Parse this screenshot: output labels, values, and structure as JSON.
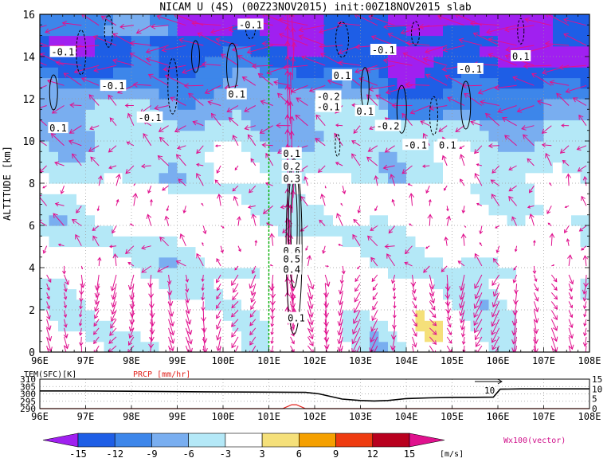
{
  "title": "NICAM U (4S) (00Z23NOV2015) init:00Z18NOV2015 slab",
  "main_panel": {
    "ylabel": "ALTITUDE [km]",
    "yticks": [
      0,
      2,
      4,
      6,
      8,
      10,
      12,
      14,
      16
    ],
    "ylim": [
      0,
      16
    ],
    "xticks": [
      "96E",
      "97E",
      "98E",
      "99E",
      "100E",
      "101E",
      "102E",
      "103E",
      "104E",
      "105E",
      "106E",
      "107E",
      "108E"
    ],
    "xlim": [
      96,
      108
    ],
    "marker_lon": 101,
    "contour_labels": [
      {
        "text": "-0.1",
        "lon": 100.6,
        "alt": 15.5
      },
      {
        "text": "-0.1",
        "lon": 96.5,
        "alt": 14.2
      },
      {
        "text": "0.1",
        "lon": 96.4,
        "alt": 10.6
      },
      {
        "text": "-0.1",
        "lon": 97.6,
        "alt": 12.6
      },
      {
        "text": "-0.1",
        "lon": 98.4,
        "alt": 11.1
      },
      {
        "text": "0.1",
        "lon": 100.3,
        "alt": 12.2
      },
      {
        "text": "0.1",
        "lon": 101.5,
        "alt": 9.4
      },
      {
        "text": "0.2",
        "lon": 101.5,
        "alt": 8.8
      },
      {
        "text": "0.3",
        "lon": 101.5,
        "alt": 8.2
      },
      {
        "text": "0.6",
        "lon": 101.5,
        "alt": 4.8
      },
      {
        "text": "0.5",
        "lon": 101.5,
        "alt": 4.4
      },
      {
        "text": "0.4",
        "lon": 101.5,
        "alt": 3.9
      },
      {
        "text": "0.1",
        "lon": 101.6,
        "alt": 1.6
      },
      {
        "text": "0.1",
        "lon": 102.6,
        "alt": 13.1
      },
      {
        "text": "-0.2",
        "lon": 102.3,
        "alt": 12.1
      },
      {
        "text": "-0.1",
        "lon": 102.3,
        "alt": 11.6
      },
      {
        "text": "-0.1",
        "lon": 103.5,
        "alt": 14.3
      },
      {
        "text": "0.1",
        "lon": 103.1,
        "alt": 11.4
      },
      {
        "text": "-0.2",
        "lon": 103.6,
        "alt": 10.7
      },
      {
        "text": "-0.1",
        "lon": 104.2,
        "alt": 9.8
      },
      {
        "text": "0.1",
        "lon": 104.9,
        "alt": 9.8
      },
      {
        "text": "-0.1",
        "lon": 105.4,
        "alt": 13.4
      },
      {
        "text": "0.1",
        "lon": 106.5,
        "alt": 14.0
      }
    ]
  },
  "lower_panel": {
    "left_label": "TEM(SFC)[K]",
    "right_label": "PRCP [mm/hr]",
    "left_ticks": [
      "310",
      "305",
      "300",
      "295",
      "290"
    ],
    "left_range": [
      290,
      310
    ],
    "right_ticks": [
      "15",
      "10",
      "5",
      "0"
    ],
    "right_range": [
      0,
      15
    ],
    "xticks": [
      "96E",
      "97E",
      "98E",
      "99E",
      "100E",
      "101E",
      "102E",
      "103E",
      "104E",
      "105E",
      "106E",
      "107E",
      "108E"
    ],
    "annotation": "10"
  },
  "colorbar": {
    "labels": [
      "-15",
      "-12",
      "-9",
      "-6",
      "-3",
      "3",
      "6",
      "9",
      "12",
      "15"
    ],
    "colors": [
      "#a020f0",
      "#1e5ee6",
      "#3d86ea",
      "#79aef0",
      "#b4e8f7",
      "#ffffff",
      "#f5e07a",
      "#f5a000",
      "#ee3b10",
      "#b8001e",
      "#e0118e"
    ],
    "units": "[m/s]",
    "vector_label": "Wx100(vector)"
  },
  "chart_data": [
    {
      "type": "heatmap",
      "title": "NICAM U (4S) (00Z23NOV2015) init:00Z18NOV2015 slab",
      "xlabel": "",
      "ylabel": "ALTITUDE [km]",
      "xlim": [
        96,
        108
      ],
      "ylim": [
        0,
        16
      ],
      "levels": [
        -15,
        -12,
        -9,
        -6,
        -3,
        3,
        6,
        9,
        12,
        15
      ],
      "units": "[m/s]"
    },
    {
      "type": "line",
      "series": [
        {
          "name": "TEM(SFC)[K]",
          "x": [
            96,
            97,
            98,
            99,
            100,
            101,
            101.8,
            102.1,
            102.6,
            103.0,
            103.3,
            103.6,
            104.0,
            104.5,
            105.0,
            105.5,
            105.9,
            106.05,
            106.5,
            107,
            108
          ],
          "values": [
            302.0,
            302.0,
            301.8,
            301.5,
            301.3,
            301.2,
            301.0,
            300.0,
            296.5,
            295.5,
            295.2,
            295.5,
            296.8,
            297.3,
            297.6,
            297.7,
            297.8,
            303.2,
            303.4,
            303.4,
            303.4
          ]
        },
        {
          "name": "PRCP [mm/hr]",
          "x": [
            96,
            101.3,
            101.5,
            101.6,
            101.8,
            108
          ],
          "values": [
            0,
            0,
            2,
            2,
            0,
            0
          ]
        }
      ],
      "xlim": [
        96,
        108
      ]
    }
  ]
}
